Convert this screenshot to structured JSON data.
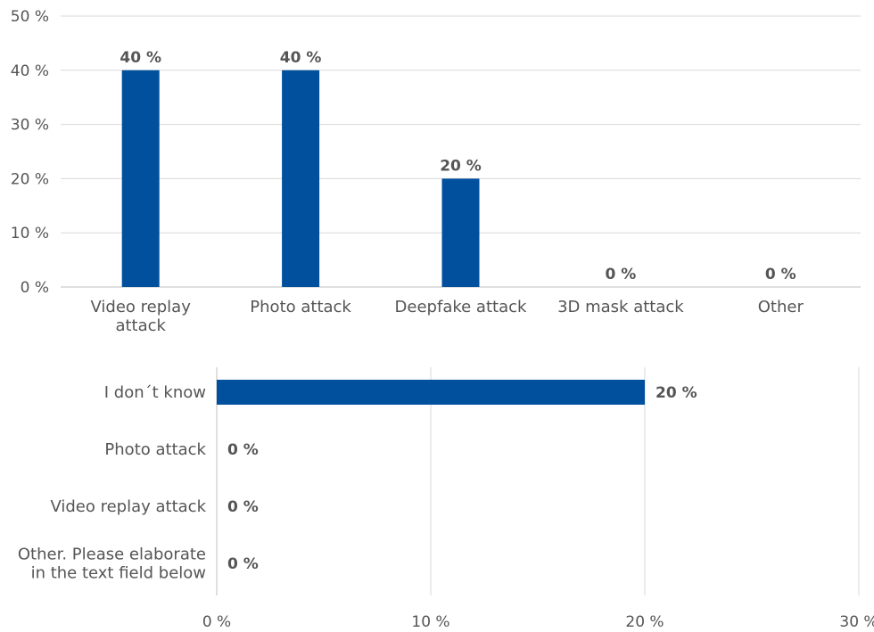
{
  "chart_data": [
    {
      "type": "bar",
      "orientation": "vertical",
      "title": "",
      "xlabel": "",
      "ylabel": "",
      "categories": [
        "Video replay attack",
        "Photo attack",
        "Deepfake attack",
        "3D mask attack",
        "Other"
      ],
      "category_lines": [
        [
          "Video replay",
          "attack"
        ],
        [
          "Photo attack"
        ],
        [
          "Deepfake attack"
        ],
        [
          "3D mask attack"
        ],
        [
          "Other"
        ]
      ],
      "values": [
        40,
        40,
        20,
        0,
        0
      ],
      "value_labels": [
        "40 %",
        "40 %",
        "20 %",
        "0 %",
        "0 %"
      ],
      "ylim": [
        0,
        50
      ],
      "y_ticks": [
        0,
        10,
        20,
        30,
        40,
        50
      ],
      "y_tick_labels": [
        "0 %",
        "10 %",
        "20 %",
        "30 %",
        "40 %",
        "50 %"
      ],
      "grid": true,
      "bar_color": "#00509e"
    },
    {
      "type": "bar",
      "orientation": "horizontal",
      "title": "",
      "xlabel": "",
      "ylabel": "",
      "categories": [
        "I don´t know",
        "Photo attack",
        "Video replay attack",
        "Other. Please elaborate in the text field below"
      ],
      "category_lines": [
        [
          "I don´t know"
        ],
        [
          "Photo attack"
        ],
        [
          "Video replay attack"
        ],
        [
          "Other. Please elaborate",
          "in the text field below"
        ]
      ],
      "values": [
        20,
        0,
        0,
        0
      ],
      "value_labels": [
        "20 %",
        "0 %",
        "0 %",
        "0 %"
      ],
      "xlim": [
        0,
        30
      ],
      "x_ticks": [
        0,
        10,
        20,
        30
      ],
      "x_tick_labels": [
        "0 %",
        "10 %",
        "20 %",
        "30 %"
      ],
      "grid": true,
      "bar_color": "#00509e"
    }
  ]
}
